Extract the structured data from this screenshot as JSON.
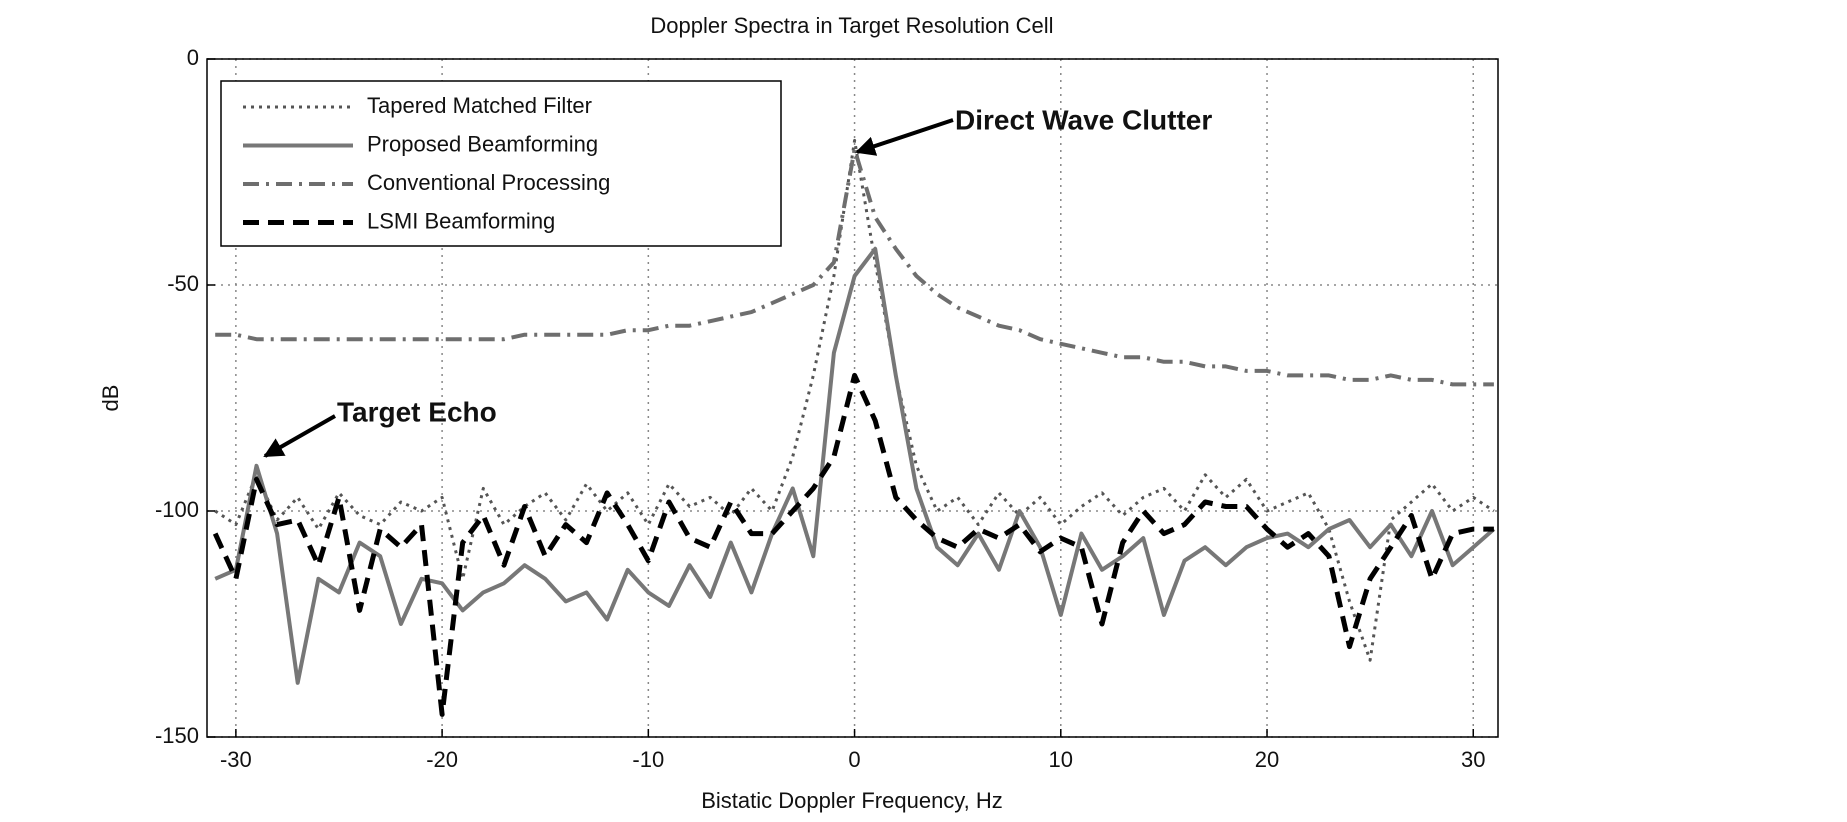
{
  "chart_data": {
    "type": "line",
    "title": "Doppler Spectra in Target Resolution Cell",
    "xlabel": "Bistatic Doppler Frequency, Hz",
    "ylabel": "dB",
    "xlim": [
      -31.4,
      31.2
    ],
    "ylim": [
      -150,
      0
    ],
    "xticks": [
      -30,
      -20,
      -10,
      0,
      10,
      20,
      30
    ],
    "yticks": [
      0,
      -50,
      -100,
      -150
    ],
    "grid": true,
    "legend": "upper left",
    "x": [
      -31,
      -30,
      -29,
      -28,
      -27,
      -26,
      -25,
      -24,
      -23,
      -22,
      -21,
      -20,
      -19,
      -18,
      -17,
      -16,
      -15,
      -14,
      -13,
      -12,
      -11,
      -10,
      -9,
      -8,
      -7,
      -6,
      -5,
      -4,
      -3,
      -2,
      -1,
      0,
      1,
      2,
      3,
      4,
      5,
      6,
      7,
      8,
      9,
      10,
      11,
      12,
      13,
      14,
      15,
      16,
      17,
      18,
      19,
      20,
      21,
      22,
      23,
      24,
      25,
      26,
      27,
      28,
      29,
      30,
      31
    ],
    "series": [
      {
        "name": "Tapered Matched Filter",
        "color": "#555555",
        "style": "dotted",
        "values": [
          -100,
          -103,
          -92,
          -102,
          -97,
          -104,
          -96,
          -101,
          -103,
          -98,
          -100,
          -97,
          -115,
          -95,
          -103,
          -99,
          -96,
          -102,
          -94,
          -100,
          -96,
          -103,
          -94,
          -99,
          -97,
          -101,
          -95,
          -100,
          -88,
          -70,
          -48,
          -18,
          -45,
          -70,
          -90,
          -100,
          -97,
          -103,
          -96,
          -101,
          -97,
          -103,
          -99,
          -96,
          -101,
          -97,
          -95,
          -100,
          -92,
          -97,
          -93,
          -100,
          -98,
          -96,
          -104,
          -120,
          -133,
          -102,
          -98,
          -94,
          -100,
          -97,
          -100
        ]
      },
      {
        "name": "Proposed Beamforming",
        "color": "#777777",
        "style": "solid",
        "values": [
          -115,
          -113,
          -90,
          -105,
          -138,
          -115,
          -118,
          -107,
          -110,
          -125,
          -115,
          -116,
          -122,
          -118,
          -116,
          -112,
          -115,
          -120,
          -118,
          -124,
          -113,
          -118,
          -121,
          -112,
          -119,
          -107,
          -118,
          -105,
          -95,
          -110,
          -65,
          -48,
          -42,
          -70,
          -95,
          -108,
          -112,
          -105,
          -113,
          -100,
          -108,
          -123,
          -105,
          -113,
          -110,
          -106,
          -123,
          -111,
          -108,
          -112,
          -108,
          -106,
          -105,
          -108,
          -104,
          -102,
          -108,
          -103,
          -110,
          -100,
          -112,
          -108,
          -104
        ]
      },
      {
        "name": "Conventional Processing",
        "color": "#6e6e6e",
        "style": "dashdot",
        "values": [
          -61,
          -61,
          -62,
          -62,
          -62,
          -62,
          -62,
          -62,
          -62,
          -62,
          -62,
          -62,
          -62,
          -62,
          -62,
          -61,
          -61,
          -61,
          -61,
          -61,
          -60,
          -60,
          -59,
          -59,
          -58,
          -57,
          -56,
          -54,
          -52,
          -50,
          -45,
          -20,
          -35,
          -42,
          -48,
          -52,
          -55,
          -57,
          -59,
          -60,
          -62,
          -63,
          -64,
          -65,
          -66,
          -66,
          -67,
          -67,
          -68,
          -68,
          -69,
          -69,
          -70,
          -70,
          -70,
          -71,
          -71,
          -70,
          -71,
          -71,
          -72,
          -72,
          -72
        ]
      },
      {
        "name": "LSMI Beamforming",
        "color": "#000000",
        "style": "dashed",
        "values": [
          -105,
          -115,
          -93,
          -103,
          -102,
          -112,
          -97,
          -122,
          -104,
          -108,
          -103,
          -145,
          -107,
          -101,
          -112,
          -99,
          -110,
          -103,
          -107,
          -96,
          -103,
          -111,
          -98,
          -106,
          -108,
          -98,
          -105,
          -105,
          -100,
          -95,
          -88,
          -70,
          -80,
          -97,
          -102,
          -106,
          -108,
          -104,
          -106,
          -103,
          -109,
          -106,
          -108,
          -125,
          -107,
          -100,
          -105,
          -103,
          -98,
          -99,
          -99,
          -104,
          -108,
          -105,
          -110,
          -130,
          -115,
          -108,
          -101,
          -115,
          -105,
          -104,
          -104
        ]
      }
    ],
    "annotations": [
      "Direct Wave Clutter",
      "Target Echo"
    ]
  }
}
